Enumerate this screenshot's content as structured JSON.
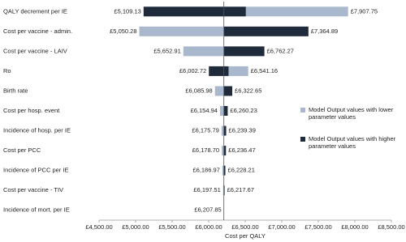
{
  "chart_data": {
    "type": "tornado",
    "categories": [
      "QALY decrement per IE",
      "Cost per vaccine - admin.",
      "Cost per vaccine - LAIV",
      "Ro",
      "Birth rate",
      "Cost per hosp. event",
      "Incidence of hosp. per IE",
      "Cost per PCC",
      "Incidence of PCC per IE",
      "Cost per vaccine - TIV",
      "Incidence of mort. per IE"
    ],
    "series": [
      {
        "name": "Model Output values with lower parameter values",
        "color": "#a9b8cc",
        "values": [
          7907.75,
          5050.28,
          5652.91,
          6541.16,
          6085.98,
          6154.94,
          6175.79,
          6178.7,
          6186.97,
          6197.51,
          6207.85
        ],
        "value_labels": [
          "£7,907.75",
          "£5,050.28",
          "£5,652.91",
          "£6,541.16",
          "£6,085.98",
          "£6,154.94",
          "£6,175.79",
          "£6,178.70",
          "£6,186.97",
          "£6,197.51",
          "£6,207.85"
        ]
      },
      {
        "name": "Model Output values with higher parameter values",
        "color": "#1f2a3a",
        "values": [
          5109.13,
          7364.89,
          6762.27,
          6002.72,
          6322.65,
          6260.23,
          6239.39,
          6236.47,
          6228.21,
          6217.67,
          6207.85
        ],
        "value_labels": [
          "£5,109.13",
          "£7,364.89",
          "£6,762.27",
          "£6,002.72",
          "£6,322.65",
          "£6,260.23",
          "£6,239.39",
          "£6,236.47",
          "£6,228.21",
          "£6,217.67",
          null
        ]
      }
    ],
    "xlabel": "Cost per QALY",
    "xlim": [
      4500,
      8500
    ],
    "xticks": [
      {
        "value": 4500,
        "label": "£4,500.00"
      },
      {
        "value": 5000,
        "label": "£5,000.00"
      },
      {
        "value": 5500,
        "label": "£5,500.00"
      },
      {
        "value": 6000,
        "label": "£6,000.00"
      },
      {
        "value": 6500,
        "label": "£6,500.00"
      },
      {
        "value": 7000,
        "label": "£7,000.00"
      },
      {
        "value": 7500,
        "label": "£7,500.00"
      },
      {
        "value": 8000,
        "label": "£8,000.00"
      },
      {
        "value": 8500,
        "label": "£8,500.00"
      }
    ]
  }
}
